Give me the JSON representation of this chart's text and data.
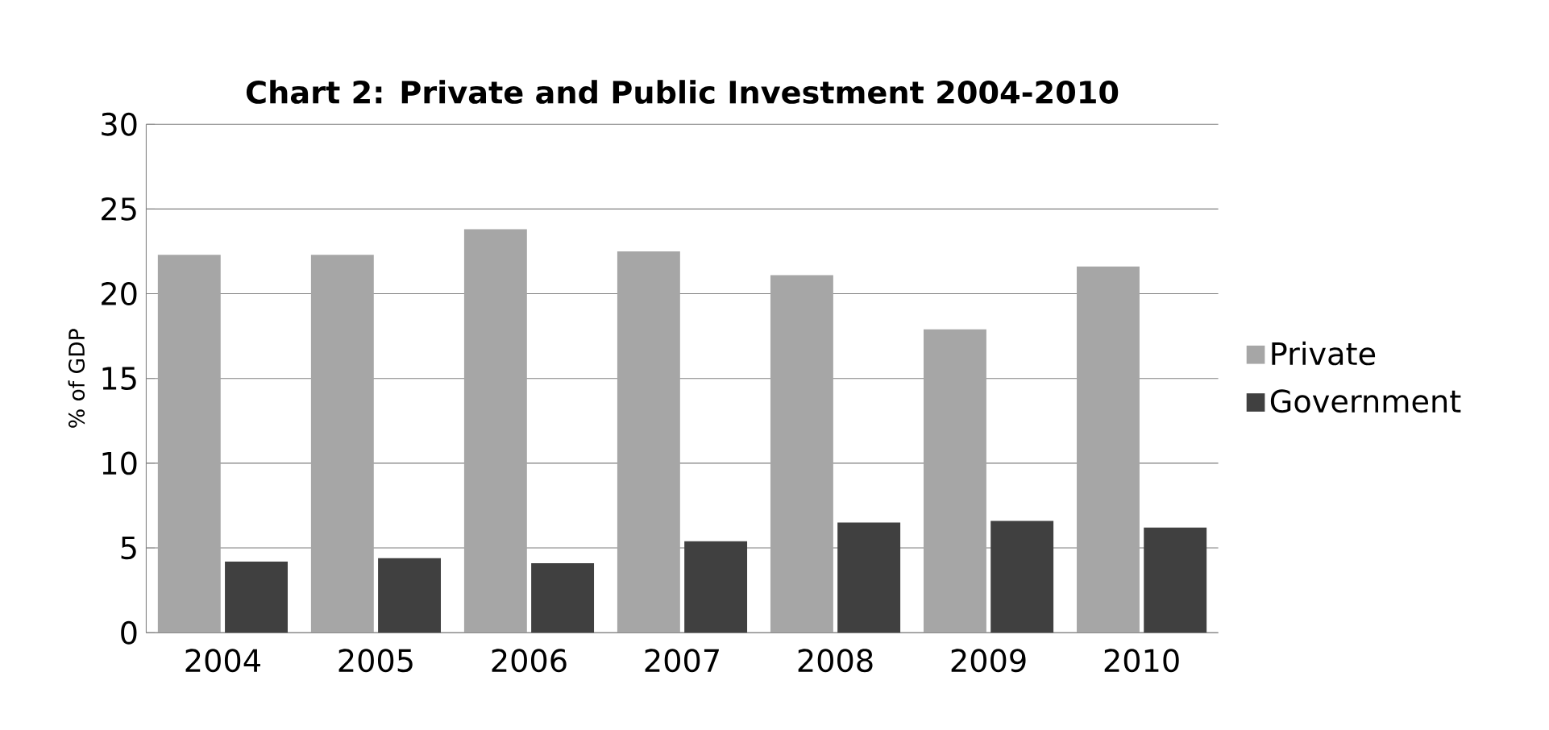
{
  "chart_data": {
    "type": "bar",
    "title": "Chart 2: Private and Public Investment 2004-2010",
    "ylabel": "% of GDP",
    "categories": [
      "2004",
      "2005",
      "2006",
      "2007",
      "2008",
      "2009",
      "2010"
    ],
    "series": [
      {
        "name": "Private",
        "color": "#a6a6a6",
        "values": [
          22.3,
          22.3,
          23.8,
          22.5,
          21.1,
          17.9,
          21.6
        ]
      },
      {
        "name": "Government",
        "color": "#404040",
        "values": [
          4.2,
          4.4,
          4.1,
          5.4,
          6.5,
          6.6,
          6.2
        ]
      }
    ],
    "ylim": [
      0,
      30
    ],
    "yticks": [
      0,
      5,
      10,
      15,
      20,
      25,
      30
    ],
    "grid": "y",
    "legend": "right"
  }
}
